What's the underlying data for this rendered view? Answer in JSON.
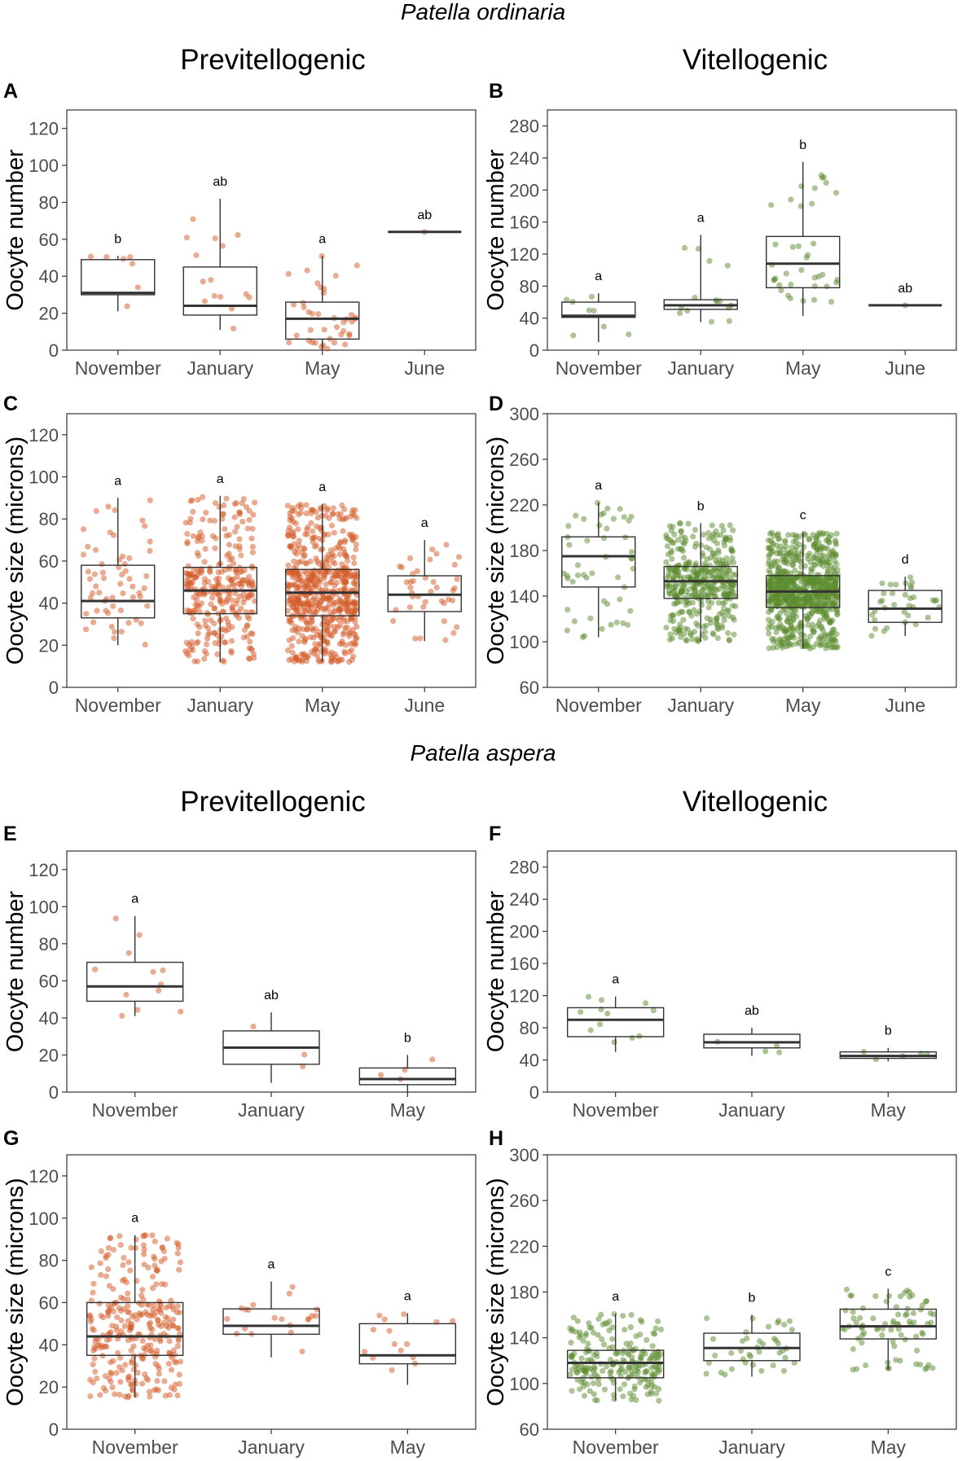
{
  "species": [
    "Patella ordinaria",
    "Patella aspera"
  ],
  "column_titles": [
    "Previtellogenic",
    "Vitellogenic"
  ],
  "colors": {
    "previtellogenic": "#d35a25",
    "vitellogenic": "#5c8c2e"
  },
  "chart_data": [
    {
      "panel": "A",
      "species": "Patella ordinaria",
      "stage": "Previtellogenic",
      "type": "box",
      "ylabel": "Oocyte number",
      "ylim": [
        0,
        130
      ],
      "yticks": [
        0,
        20,
        40,
        60,
        80,
        100,
        120
      ],
      "categories": [
        "November",
        "January",
        "May",
        "June"
      ],
      "boxes": [
        {
          "q1": 30,
          "median": 31,
          "q3": 49,
          "lo": 21,
          "hi": 51,
          "n": 7,
          "sig": "b"
        },
        {
          "q1": 19,
          "median": 24,
          "q3": 45,
          "lo": 11,
          "hi": 82,
          "n": 15,
          "sig": "ab"
        },
        {
          "q1": 6,
          "median": 17,
          "q3": 26,
          "lo": 0,
          "hi": 51,
          "n": 40,
          "sig": "a"
        },
        {
          "q1": 64,
          "median": 64,
          "q3": 64,
          "lo": 64,
          "hi": 64,
          "n": 1,
          "sig": "ab"
        }
      ]
    },
    {
      "panel": "B",
      "species": "Patella ordinaria",
      "stage": "Vitellogenic",
      "type": "box",
      "ylabel": "Oocyte number",
      "ylim": [
        0,
        300
      ],
      "yticks": [
        0,
        40,
        80,
        120,
        160,
        200,
        240,
        280
      ],
      "categories": [
        "November",
        "January",
        "May",
        "June"
      ],
      "boxes": [
        {
          "q1": 41,
          "median": 43,
          "q3": 60,
          "lo": 10,
          "hi": 71,
          "n": 8,
          "sig": "a"
        },
        {
          "q1": 51,
          "median": 56,
          "q3": 63,
          "lo": 35,
          "hi": 144,
          "n": 15,
          "sig": "a"
        },
        {
          "q1": 78,
          "median": 108,
          "q3": 142,
          "lo": 43,
          "hi": 235,
          "n": 38,
          "sig": "b"
        },
        {
          "q1": 56,
          "median": 56,
          "q3": 56,
          "lo": 56,
          "hi": 56,
          "n": 1,
          "sig": "ab"
        }
      ]
    },
    {
      "panel": "C",
      "species": "Patella ordinaria",
      "stage": "Previtellogenic",
      "type": "box",
      "ylabel": "Oocyte size (microns)",
      "ylim": [
        0,
        130
      ],
      "yticks": [
        0,
        20,
        40,
        60,
        80,
        100,
        120
      ],
      "categories": [
        "November",
        "January",
        "May",
        "June"
      ],
      "boxes": [
        {
          "q1": 33,
          "median": 41,
          "q3": 58,
          "lo": 20,
          "hi": 90,
          "n": 60,
          "sig": "a"
        },
        {
          "q1": 35,
          "median": 46,
          "q3": 57,
          "lo": 12,
          "hi": 91,
          "n": 300,
          "sig": "a"
        },
        {
          "q1": 34,
          "median": 45,
          "q3": 56,
          "lo": 12,
          "hi": 87,
          "n": 600,
          "sig": "a"
        },
        {
          "q1": 36,
          "median": 44,
          "q3": 53,
          "lo": 22,
          "hi": 70,
          "n": 40,
          "sig": "a"
        }
      ]
    },
    {
      "panel": "D",
      "species": "Patella ordinaria",
      "stage": "Vitellogenic",
      "type": "box",
      "ylabel": "Oocyte size (microns)",
      "ylim": [
        60,
        300
      ],
      "yticks": [
        60,
        100,
        140,
        180,
        220,
        260,
        300
      ],
      "categories": [
        "November",
        "January",
        "May",
        "June"
      ],
      "boxes": [
        {
          "q1": 148,
          "median": 175,
          "q3": 192,
          "lo": 104,
          "hi": 222,
          "n": 50,
          "sig": "a"
        },
        {
          "q1": 138,
          "median": 153,
          "q3": 166,
          "lo": 100,
          "hi": 204,
          "n": 400,
          "sig": "b"
        },
        {
          "q1": 130,
          "median": 144,
          "q3": 158,
          "lo": 94,
          "hi": 196,
          "n": 800,
          "sig": "c"
        },
        {
          "q1": 117,
          "median": 129,
          "q3": 145,
          "lo": 105,
          "hi": 157,
          "n": 35,
          "sig": "d"
        }
      ]
    },
    {
      "panel": "E",
      "species": "Patella aspera",
      "stage": "Previtellogenic",
      "type": "box",
      "ylabel": "Oocyte number",
      "ylim": [
        0,
        130
      ],
      "yticks": [
        0,
        20,
        40,
        60,
        80,
        100,
        120
      ],
      "categories": [
        "November",
        "January",
        "May"
      ],
      "boxes": [
        {
          "q1": 49,
          "median": 57,
          "q3": 70,
          "lo": 41,
          "hi": 95,
          "n": 12,
          "sig": "a"
        },
        {
          "q1": 15,
          "median": 24,
          "q3": 33,
          "lo": 5,
          "hi": 43,
          "n": 3,
          "sig": "ab"
        },
        {
          "q1": 4,
          "median": 7,
          "q3": 13,
          "lo": 0,
          "hi": 20,
          "n": 4,
          "sig": "b"
        }
      ]
    },
    {
      "panel": "F",
      "species": "Patella aspera",
      "stage": "Vitellogenic",
      "type": "box",
      "ylabel": "Oocyte number",
      "ylim": [
        0,
        300
      ],
      "yticks": [
        0,
        40,
        80,
        120,
        160,
        200,
        240,
        280
      ],
      "categories": [
        "November",
        "January",
        "May"
      ],
      "boxes": [
        {
          "q1": 69,
          "median": 90,
          "q3": 105,
          "lo": 50,
          "hi": 119,
          "n": 12,
          "sig": "a"
        },
        {
          "q1": 55,
          "median": 62,
          "q3": 72,
          "lo": 45,
          "hi": 80,
          "n": 4,
          "sig": "ab"
        },
        {
          "q1": 42,
          "median": 45,
          "q3": 50,
          "lo": 38,
          "hi": 55,
          "n": 5,
          "sig": "b"
        }
      ]
    },
    {
      "panel": "G",
      "species": "Patella aspera",
      "stage": "Previtellogenic",
      "type": "box",
      "ylabel": "Oocyte size (microns)",
      "ylim": [
        0,
        130
      ],
      "yticks": [
        0,
        20,
        40,
        60,
        80,
        100,
        120
      ],
      "categories": [
        "November",
        "January",
        "May"
      ],
      "boxes": [
        {
          "q1": 35,
          "median": 44,
          "q3": 60,
          "lo": 15,
          "hi": 92,
          "n": 300,
          "sig": "a"
        },
        {
          "q1": 45,
          "median": 49,
          "q3": 57,
          "lo": 34,
          "hi": 70,
          "n": 20,
          "sig": "a"
        },
        {
          "q1": 31,
          "median": 35,
          "q3": 50,
          "lo": 21,
          "hi": 55,
          "n": 15,
          "sig": "a"
        }
      ]
    },
    {
      "panel": "H",
      "species": "Patella aspera",
      "stage": "Vitellogenic",
      "type": "box",
      "ylabel": "Oocyte size (microns)",
      "ylim": [
        60,
        300
      ],
      "yticks": [
        60,
        100,
        140,
        180,
        220,
        260,
        300
      ],
      "categories": [
        "November",
        "January",
        "May"
      ],
      "boxes": [
        {
          "q1": 105,
          "median": 118,
          "q3": 129,
          "lo": 85,
          "hi": 161,
          "n": 220,
          "sig": "a"
        },
        {
          "q1": 120,
          "median": 131,
          "q3": 144,
          "lo": 106,
          "hi": 160,
          "n": 40,
          "sig": "b"
        },
        {
          "q1": 139,
          "median": 150,
          "q3": 165,
          "lo": 112,
          "hi": 183,
          "n": 80,
          "sig": "c"
        }
      ]
    }
  ]
}
